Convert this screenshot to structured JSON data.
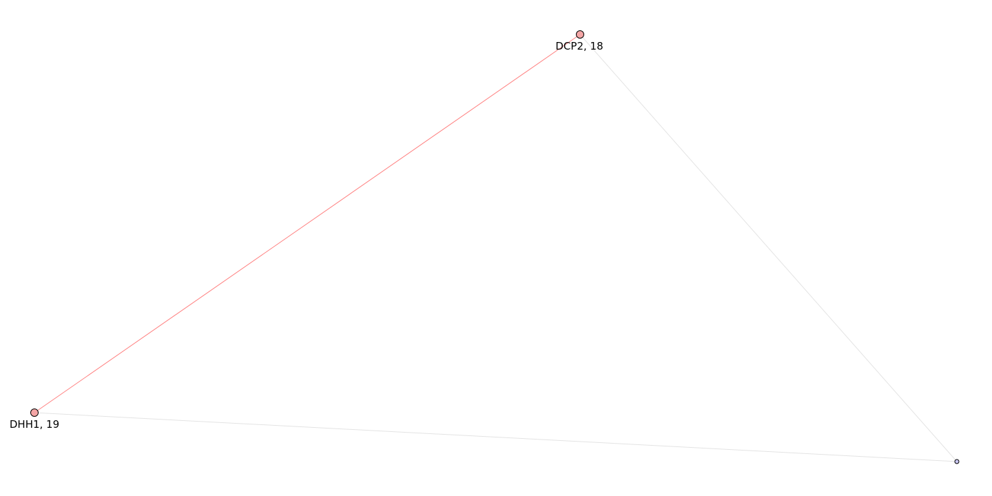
{
  "graph": {
    "nodes": [
      {
        "id": "dcp2",
        "label": "DCP2, 18",
        "fill": "#f4a6a6",
        "stroke": "#000000"
      },
      {
        "id": "dhh1",
        "label": "DHH1, 19",
        "fill": "#f4a6a6",
        "stroke": "#000000"
      },
      {
        "id": "unlabeled",
        "label": "",
        "fill": "#c9c6f2",
        "stroke": "#000000"
      }
    ],
    "edges": [
      {
        "source": "dcp2",
        "target": "dhh1",
        "color": "#ff7f7f"
      },
      {
        "source": "dcp2",
        "target": "unlabeled",
        "color": "#e3e3e3"
      },
      {
        "source": "dhh1",
        "target": "unlabeled",
        "color": "#e3e3e3"
      }
    ]
  }
}
